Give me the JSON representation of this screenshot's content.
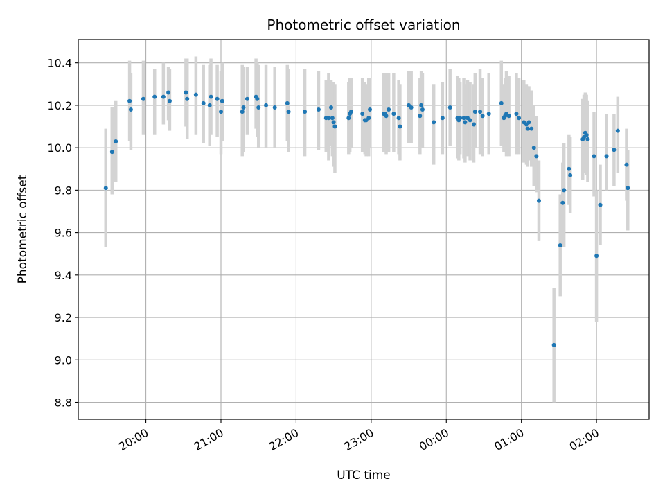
{
  "chart_data": {
    "type": "scatter",
    "title": "Photometric offset variation",
    "xlabel": "UTC time",
    "ylabel": "Photometric offset",
    "x_axis_kind": "time",
    "x_ticks": [
      "20:00",
      "21:00",
      "22:00",
      "23:00",
      "00:00",
      "01:00",
      "02:00"
    ],
    "x_tick_hours": [
      20,
      21,
      22,
      23,
      24,
      25,
      26
    ],
    "xlim_hours": [
      19.1,
      26.7
    ],
    "y_ticks": [
      8.8,
      9.0,
      9.2,
      9.4,
      9.6,
      9.8,
      10.0,
      10.2,
      10.4
    ],
    "ylim": [
      8.72,
      10.51
    ],
    "grid": true,
    "colors": {
      "point": "#1f77b4",
      "errorbar": "#d3d3d3",
      "grid": "#b0b0b0"
    },
    "series": [
      {
        "points": [
          [
            "19:28",
            9.81,
            9.53,
            10.09
          ],
          [
            "19:33",
            9.98,
            9.78,
            10.19
          ],
          [
            "19:36",
            10.03,
            9.84,
            10.22
          ],
          [
            "19:47",
            10.22,
            10.03,
            10.41
          ],
          [
            "19:48",
            10.18,
            9.99,
            10.35
          ],
          [
            "19:58",
            10.23,
            10.06,
            10.41
          ],
          [
            "20:07",
            10.24,
            10.06,
            10.37
          ],
          [
            "20:14",
            10.24,
            10.11,
            10.4
          ],
          [
            "20:18",
            10.26,
            10.13,
            10.38
          ],
          [
            "20:19",
            10.22,
            10.08,
            10.37
          ],
          [
            "20:32",
            10.26,
            10.1,
            10.42
          ],
          [
            "20:33",
            10.23,
            10.04,
            10.42
          ],
          [
            "20:40",
            10.25,
            10.06,
            10.43
          ],
          [
            "20:46",
            10.21,
            10.02,
            10.39
          ],
          [
            "20:51",
            10.2,
            10.01,
            10.39
          ],
          [
            "20:52",
            10.24,
            10.06,
            10.42
          ],
          [
            "20:57",
            10.23,
            10.05,
            10.39
          ],
          [
            "21:00",
            10.17,
            9.97,
            10.36
          ],
          [
            "21:01",
            10.22,
            10.03,
            10.4
          ],
          [
            "21:17",
            10.17,
            9.96,
            10.39
          ],
          [
            "21:18",
            10.19,
            9.98,
            10.38
          ],
          [
            "21:21",
            10.23,
            10.06,
            10.38
          ],
          [
            "21:28",
            10.24,
            10.09,
            10.42
          ],
          [
            "21:29",
            10.23,
            10.05,
            10.4
          ],
          [
            "21:30",
            10.19,
            10.0,
            10.39
          ],
          [
            "21:36",
            10.2,
            10.0,
            10.39
          ],
          [
            "21:43",
            10.19,
            10.0,
            10.38
          ],
          [
            "21:53",
            10.21,
            10.03,
            10.39
          ],
          [
            "21:54",
            10.17,
            9.98,
            10.37
          ],
          [
            "22:07",
            10.17,
            9.96,
            10.37
          ],
          [
            "22:18",
            10.18,
            9.99,
            10.36
          ],
          [
            "22:24",
            10.14,
            9.98,
            10.32
          ],
          [
            "22:26",
            10.14,
            9.94,
            10.35
          ],
          [
            "22:28",
            10.19,
            10.01,
            10.32
          ],
          [
            "22:29",
            10.14,
            9.96,
            10.3
          ],
          [
            "22:30",
            10.12,
            9.91,
            10.31
          ],
          [
            "22:31",
            10.1,
            9.88,
            10.3
          ],
          [
            "22:42",
            10.14,
            9.97,
            10.31
          ],
          [
            "22:43",
            10.16,
            9.98,
            10.33
          ],
          [
            "22:44",
            10.17,
            10.0,
            10.33
          ],
          [
            "22:53",
            10.16,
            9.98,
            10.33
          ],
          [
            "22:55",
            10.13,
            9.97,
            10.31
          ],
          [
            "22:56",
            10.13,
            9.96,
            10.3
          ],
          [
            "22:58",
            10.14,
            9.96,
            10.33
          ],
          [
            "22:59",
            10.18,
            10.0,
            10.33
          ],
          [
            "23:10",
            10.16,
            9.98,
            10.35
          ],
          [
            "23:11",
            10.16,
            9.98,
            10.34
          ],
          [
            "23:12",
            10.15,
            9.97,
            10.35
          ],
          [
            "23:14",
            10.18,
            9.98,
            10.35
          ],
          [
            "23:18",
            10.16,
            9.98,
            10.35
          ],
          [
            "23:22",
            10.14,
            9.97,
            10.32
          ],
          [
            "23:23",
            10.1,
            9.94,
            10.3
          ],
          [
            "23:30",
            10.2,
            10.02,
            10.36
          ],
          [
            "23:32",
            10.19,
            10.02,
            10.36
          ],
          [
            "23:39",
            10.15,
            9.97,
            10.33
          ],
          [
            "23:40",
            10.2,
            10.02,
            10.36
          ],
          [
            "23:41",
            10.18,
            10.0,
            10.35
          ],
          [
            "23:50",
            10.12,
            9.92,
            10.3
          ],
          [
            "23:57",
            10.14,
            9.97,
            10.31
          ],
          [
            "24:03",
            10.19,
            10.01,
            10.37
          ],
          [
            "24:09",
            10.14,
            9.95,
            10.34
          ],
          [
            "24:10",
            10.13,
            9.94,
            10.33
          ],
          [
            "24:11",
            10.14,
            9.97,
            10.31
          ],
          [
            "24:14",
            10.14,
            9.95,
            10.33
          ],
          [
            "24:15",
            10.12,
            9.93,
            10.3
          ],
          [
            "24:17",
            10.14,
            9.96,
            10.32
          ],
          [
            "24:19",
            10.13,
            9.94,
            10.31
          ],
          [
            "24:22",
            10.11,
            9.93,
            10.3
          ],
          [
            "24:23",
            10.17,
            10.0,
            10.35
          ],
          [
            "24:27",
            10.17,
            9.97,
            10.37
          ],
          [
            "24:29",
            10.15,
            9.96,
            10.33
          ],
          [
            "24:34",
            10.16,
            9.97,
            10.35
          ],
          [
            "24:44",
            10.21,
            10.01,
            10.41
          ],
          [
            "24:46",
            10.14,
            9.98,
            10.3
          ],
          [
            "24:47",
            10.15,
            9.98,
            10.33
          ],
          [
            "24:48",
            10.16,
            9.96,
            10.36
          ],
          [
            "24:50",
            10.15,
            9.96,
            10.34
          ],
          [
            "24:56",
            10.16,
            9.97,
            10.35
          ],
          [
            "24:58",
            10.14,
            9.97,
            10.33
          ],
          [
            "25:02",
            10.12,
            9.93,
            10.32
          ],
          [
            "25:04",
            10.11,
            9.92,
            10.3
          ],
          [
            "25:05",
            10.09,
            9.91,
            10.29
          ],
          [
            "25:06",
            10.12,
            9.94,
            10.29
          ],
          [
            "25:08",
            10.09,
            9.91,
            10.27
          ],
          [
            "25:10",
            10.0,
            9.82,
            10.2
          ],
          [
            "25:12",
            9.96,
            9.79,
            10.15
          ],
          [
            "25:14",
            9.75,
            9.56,
            9.94
          ],
          [
            "25:26",
            9.07,
            8.8,
            9.34
          ],
          [
            "25:31",
            9.54,
            9.3,
            9.78
          ],
          [
            "25:33",
            9.74,
            9.55,
            9.93
          ],
          [
            "25:34",
            9.8,
            9.53,
            10.02
          ],
          [
            "25:38",
            9.9,
            9.73,
            10.06
          ],
          [
            "25:39",
            9.87,
            9.69,
            10.05
          ],
          [
            "25:49",
            10.04,
            9.85,
            10.23
          ],
          [
            "25:50",
            10.05,
            9.88,
            10.25
          ],
          [
            "25:51",
            10.07,
            9.89,
            10.26
          ],
          [
            "25:52",
            10.06,
            9.87,
            10.25
          ],
          [
            "25:53",
            10.04,
            9.84,
            10.22
          ],
          [
            "25:58",
            9.96,
            9.77,
            10.17
          ],
          [
            "26:00",
            9.49,
            9.18,
            9.8
          ],
          [
            "26:03",
            9.73,
            9.54,
            9.92
          ],
          [
            "26:08",
            9.96,
            9.8,
            10.16
          ],
          [
            "26:14",
            9.99,
            9.82,
            10.16
          ],
          [
            "26:17",
            10.08,
            9.88,
            10.24
          ],
          [
            "26:24",
            9.92,
            9.75,
            10.09
          ],
          [
            "26:25",
            9.81,
            9.61,
            9.99
          ]
        ]
      }
    ]
  }
}
